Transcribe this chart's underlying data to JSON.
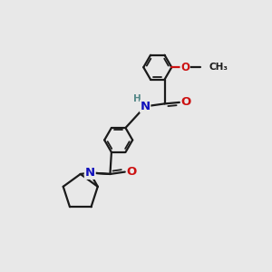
{
  "bg": "#e8e8e8",
  "bc": "#1a1a1a",
  "nc": "#1111bb",
  "oc": "#cc1111",
  "hc": "#558888",
  "lw": 1.6,
  "ilw": 1.3,
  "fs": 8.5,
  "figsize": [
    3.0,
    3.0
  ],
  "dpi": 100,
  "xlim": [
    0,
    10
  ],
  "ylim": [
    0,
    10
  ]
}
